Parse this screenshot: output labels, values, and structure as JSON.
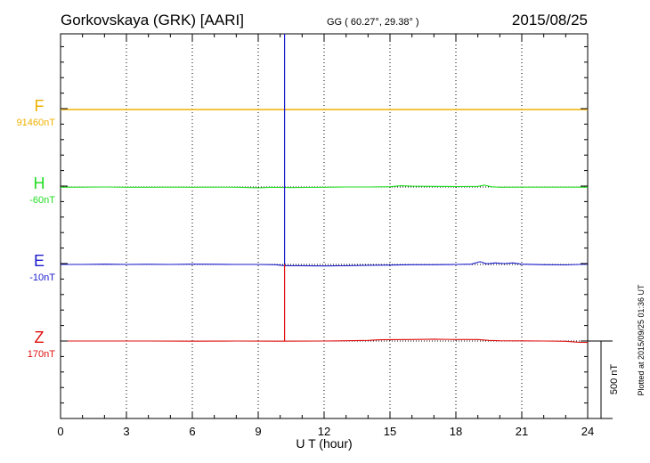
{
  "header": {
    "station": "Gorkovskaya (GRK)  [AARI]",
    "coords": "GG ( 60.27°,  29.38° )",
    "date": "2015/08/25"
  },
  "side_note": "Plotted at 2015/09/25 01:36 UT",
  "chart_data": {
    "type": "line",
    "xlabel": "U T (hour)",
    "xlim": [
      0,
      24
    ],
    "xticks": [
      "0",
      "3",
      "6",
      "9",
      "12",
      "15",
      "18",
      "21",
      "24"
    ],
    "grid": true,
    "scale_bar": {
      "label": "500 nT",
      "value_nT": 500
    },
    "series": [
      {
        "name": "F",
        "baseline": "91460nT",
        "color": "#f0b000",
        "points": [
          [
            0,
            0
          ],
          [
            10.1,
            0
          ],
          [
            10.2,
            0
          ],
          [
            24,
            0
          ]
        ]
      },
      {
        "name": "H",
        "baseline": "-60nT",
        "color": "#22dd22",
        "points": [
          [
            0,
            -2
          ],
          [
            1,
            -1
          ],
          [
            2,
            0
          ],
          [
            3,
            -2
          ],
          [
            4,
            -2
          ],
          [
            5,
            -1
          ],
          [
            6,
            -2
          ],
          [
            7,
            -1
          ],
          [
            8,
            -2
          ],
          [
            8.6,
            -4
          ],
          [
            9.0,
            -6
          ],
          [
            9.3,
            -4
          ],
          [
            9.6,
            -2
          ],
          [
            10.0,
            -3
          ],
          [
            10.5,
            -4
          ],
          [
            11.2,
            -3
          ],
          [
            12,
            -2
          ],
          [
            13,
            0
          ],
          [
            14,
            0
          ],
          [
            15,
            2
          ],
          [
            15.5,
            8
          ],
          [
            16,
            5
          ],
          [
            17,
            4
          ],
          [
            18,
            3
          ],
          [
            19,
            4
          ],
          [
            19.3,
            12
          ],
          [
            19.6,
            2
          ],
          [
            20,
            -2
          ],
          [
            21,
            -1
          ],
          [
            22,
            -1
          ],
          [
            23,
            -1
          ],
          [
            23.5,
            -1
          ],
          [
            24,
            -2
          ]
        ]
      },
      {
        "name": "E",
        "baseline": "-10nT",
        "color": "#1b1bcc",
        "points": [
          [
            0,
            0
          ],
          [
            1,
            0
          ],
          [
            2,
            2
          ],
          [
            3,
            0
          ],
          [
            4,
            1
          ],
          [
            5,
            0
          ],
          [
            6,
            2
          ],
          [
            7,
            1
          ],
          [
            8,
            0
          ],
          [
            9,
            0
          ],
          [
            9.8,
            -2
          ],
          [
            10.2,
            -8
          ],
          [
            11,
            -8
          ],
          [
            12,
            -10
          ],
          [
            13,
            -8
          ],
          [
            14,
            -6
          ],
          [
            15,
            -4
          ],
          [
            16,
            -2
          ],
          [
            17,
            -2
          ],
          [
            18,
            0
          ],
          [
            18.7,
            2
          ],
          [
            19.1,
            18
          ],
          [
            19.4,
            4
          ],
          [
            19.8,
            10
          ],
          [
            20.2,
            6
          ],
          [
            20.6,
            10
          ],
          [
            21,
            2
          ],
          [
            22,
            -2
          ],
          [
            23,
            -3
          ],
          [
            23.6,
            0
          ],
          [
            24,
            2
          ]
        ]
      },
      {
        "name": "Z",
        "baseline": "170nT",
        "color": "#e01010",
        "points": [
          [
            0,
            0
          ],
          [
            2,
            0
          ],
          [
            4,
            0
          ],
          [
            6,
            -1
          ],
          [
            8,
            0
          ],
          [
            10,
            -1
          ],
          [
            12,
            0
          ],
          [
            13,
            2
          ],
          [
            14,
            4
          ],
          [
            14.5,
            8
          ],
          [
            15,
            9
          ],
          [
            16,
            10
          ],
          [
            17,
            12
          ],
          [
            18,
            10
          ],
          [
            19,
            10
          ],
          [
            19.5,
            4
          ],
          [
            20,
            2
          ],
          [
            21,
            1
          ],
          [
            22,
            0
          ],
          [
            23,
            -2
          ],
          [
            23.6,
            -8
          ],
          [
            24,
            -9
          ]
        ]
      }
    ],
    "spike": {
      "x": 10.2,
      "color_top": "#1b1bcc",
      "color_bottom": "#e01010"
    }
  }
}
